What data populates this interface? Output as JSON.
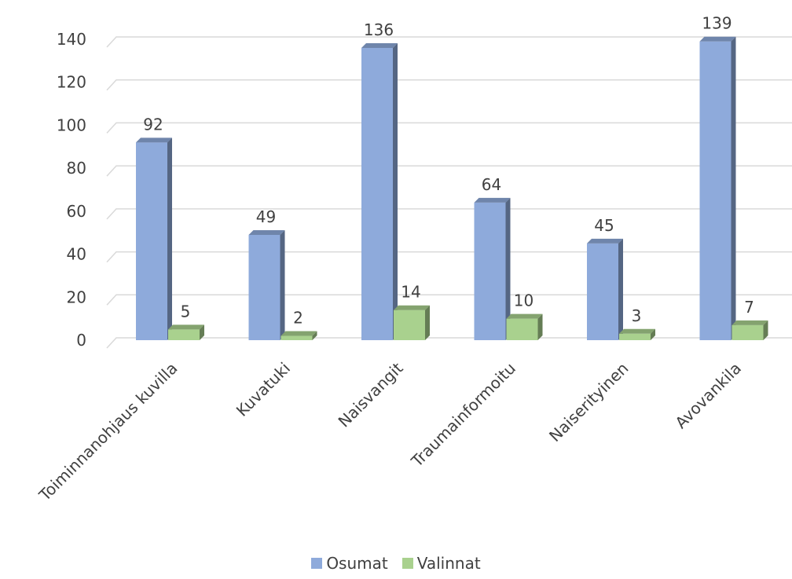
{
  "chart_data": {
    "type": "bar",
    "title": "",
    "xlabel": "",
    "ylabel": "",
    "categories": [
      "Toiminnanohjaus kuvilla",
      "Kuvatuki",
      "Naisvangit",
      "Traumainformoitu",
      "Naiserityinen",
      "Avovankila"
    ],
    "series": [
      {
        "name": "Osumat",
        "values": [
          92,
          49,
          136,
          64,
          45,
          139
        ],
        "color": "#8eaadb"
      },
      {
        "name": "Valinnat",
        "values": [
          5,
          2,
          14,
          10,
          3,
          7
        ],
        "color": "#a9d18e"
      }
    ],
    "ylim": [
      0,
      140
    ],
    "yticks": [
      0,
      20,
      40,
      60,
      80,
      100,
      120,
      140
    ],
    "grid": true,
    "legend": "bottom",
    "style": "3d-column"
  }
}
